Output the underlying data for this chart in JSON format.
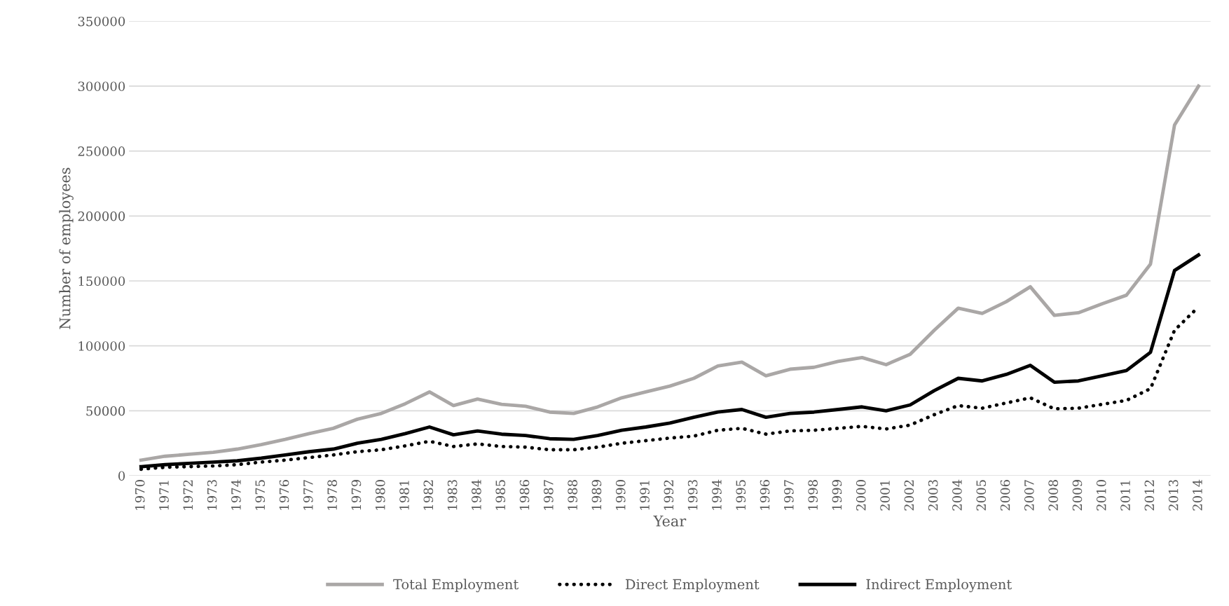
{
  "chart_data": {
    "type": "line",
    "xlabel": "Year",
    "ylabel": "Number of employees",
    "categories": [
      "1970",
      "1971",
      "1972",
      "1973",
      "1974",
      "1975",
      "1976",
      "1977",
      "1978",
      "1979",
      "1980",
      "1981",
      "1982",
      "1983",
      "1984",
      "1985",
      "1986",
      "1987",
      "1988",
      "1989",
      "1990",
      "1991",
      "1992",
      "1993",
      "1994",
      "1995",
      "1996",
      "1997",
      "1998",
      "1999",
      "2000",
      "2001",
      "2002",
      "2003",
      "2004",
      "2005",
      "2006",
      "2007",
      "2008",
      "2009",
      "2010",
      "2011",
      "2012",
      "2013",
      "2014"
    ],
    "series": [
      {
        "name": "Total Employment",
        "color": "#aaa7a6",
        "line_style": "solid",
        "values": [
          12000,
          15000,
          16500,
          18000,
          20500,
          24000,
          28000,
          32500,
          36500,
          43500,
          48000,
          55500,
          64500,
          54000,
          59000,
          55000,
          53500,
          49000,
          48000,
          53000,
          60000,
          64500,
          69000,
          75000,
          84500,
          87500,
          77000,
          82000,
          83500,
          88000,
          91000,
          85500,
          93500,
          112000,
          129000,
          125000,
          134000,
          145500,
          123500,
          125500,
          132500,
          139000,
          163000,
          270000,
          300000
        ]
      },
      {
        "name": "Direct Employment",
        "color": "#000000",
        "line_style": "dotted",
        "values": [
          5000,
          6500,
          7000,
          7500,
          8500,
          10500,
          12000,
          14000,
          16000,
          18500,
          20000,
          23000,
          26500,
          22500,
          24500,
          22500,
          22000,
          20000,
          20000,
          22000,
          25000,
          27000,
          29000,
          30500,
          35000,
          36500,
          32000,
          34500,
          35000,
          36500,
          38000,
          36000,
          39000,
          47000,
          54000,
          52000,
          56000,
          60000,
          51500,
          52000,
          55000,
          58000,
          67000,
          112000,
          130000
        ]
      },
      {
        "name": "Indirect Employment",
        "color": "#000000",
        "line_style": "solid",
        "values": [
          7000,
          8500,
          9500,
          10500,
          11500,
          13500,
          16000,
          18500,
          20500,
          25000,
          28000,
          32500,
          37500,
          31500,
          34500,
          32000,
          31000,
          28500,
          28000,
          31000,
          35000,
          37500,
          40500,
          45000,
          49000,
          51000,
          45000,
          48000,
          49000,
          51000,
          53000,
          50000,
          54500,
          65500,
          75000,
          73000,
          78000,
          85000,
          72000,
          73000,
          77000,
          81000,
          95000,
          158000,
          170000
        ]
      }
    ],
    "ylim": [
      0,
      350000
    ],
    "yticks": [
      0,
      50000,
      100000,
      150000,
      200000,
      250000,
      300000,
      350000
    ],
    "grid": "y",
    "legend": "bottom",
    "marker": "none"
  }
}
